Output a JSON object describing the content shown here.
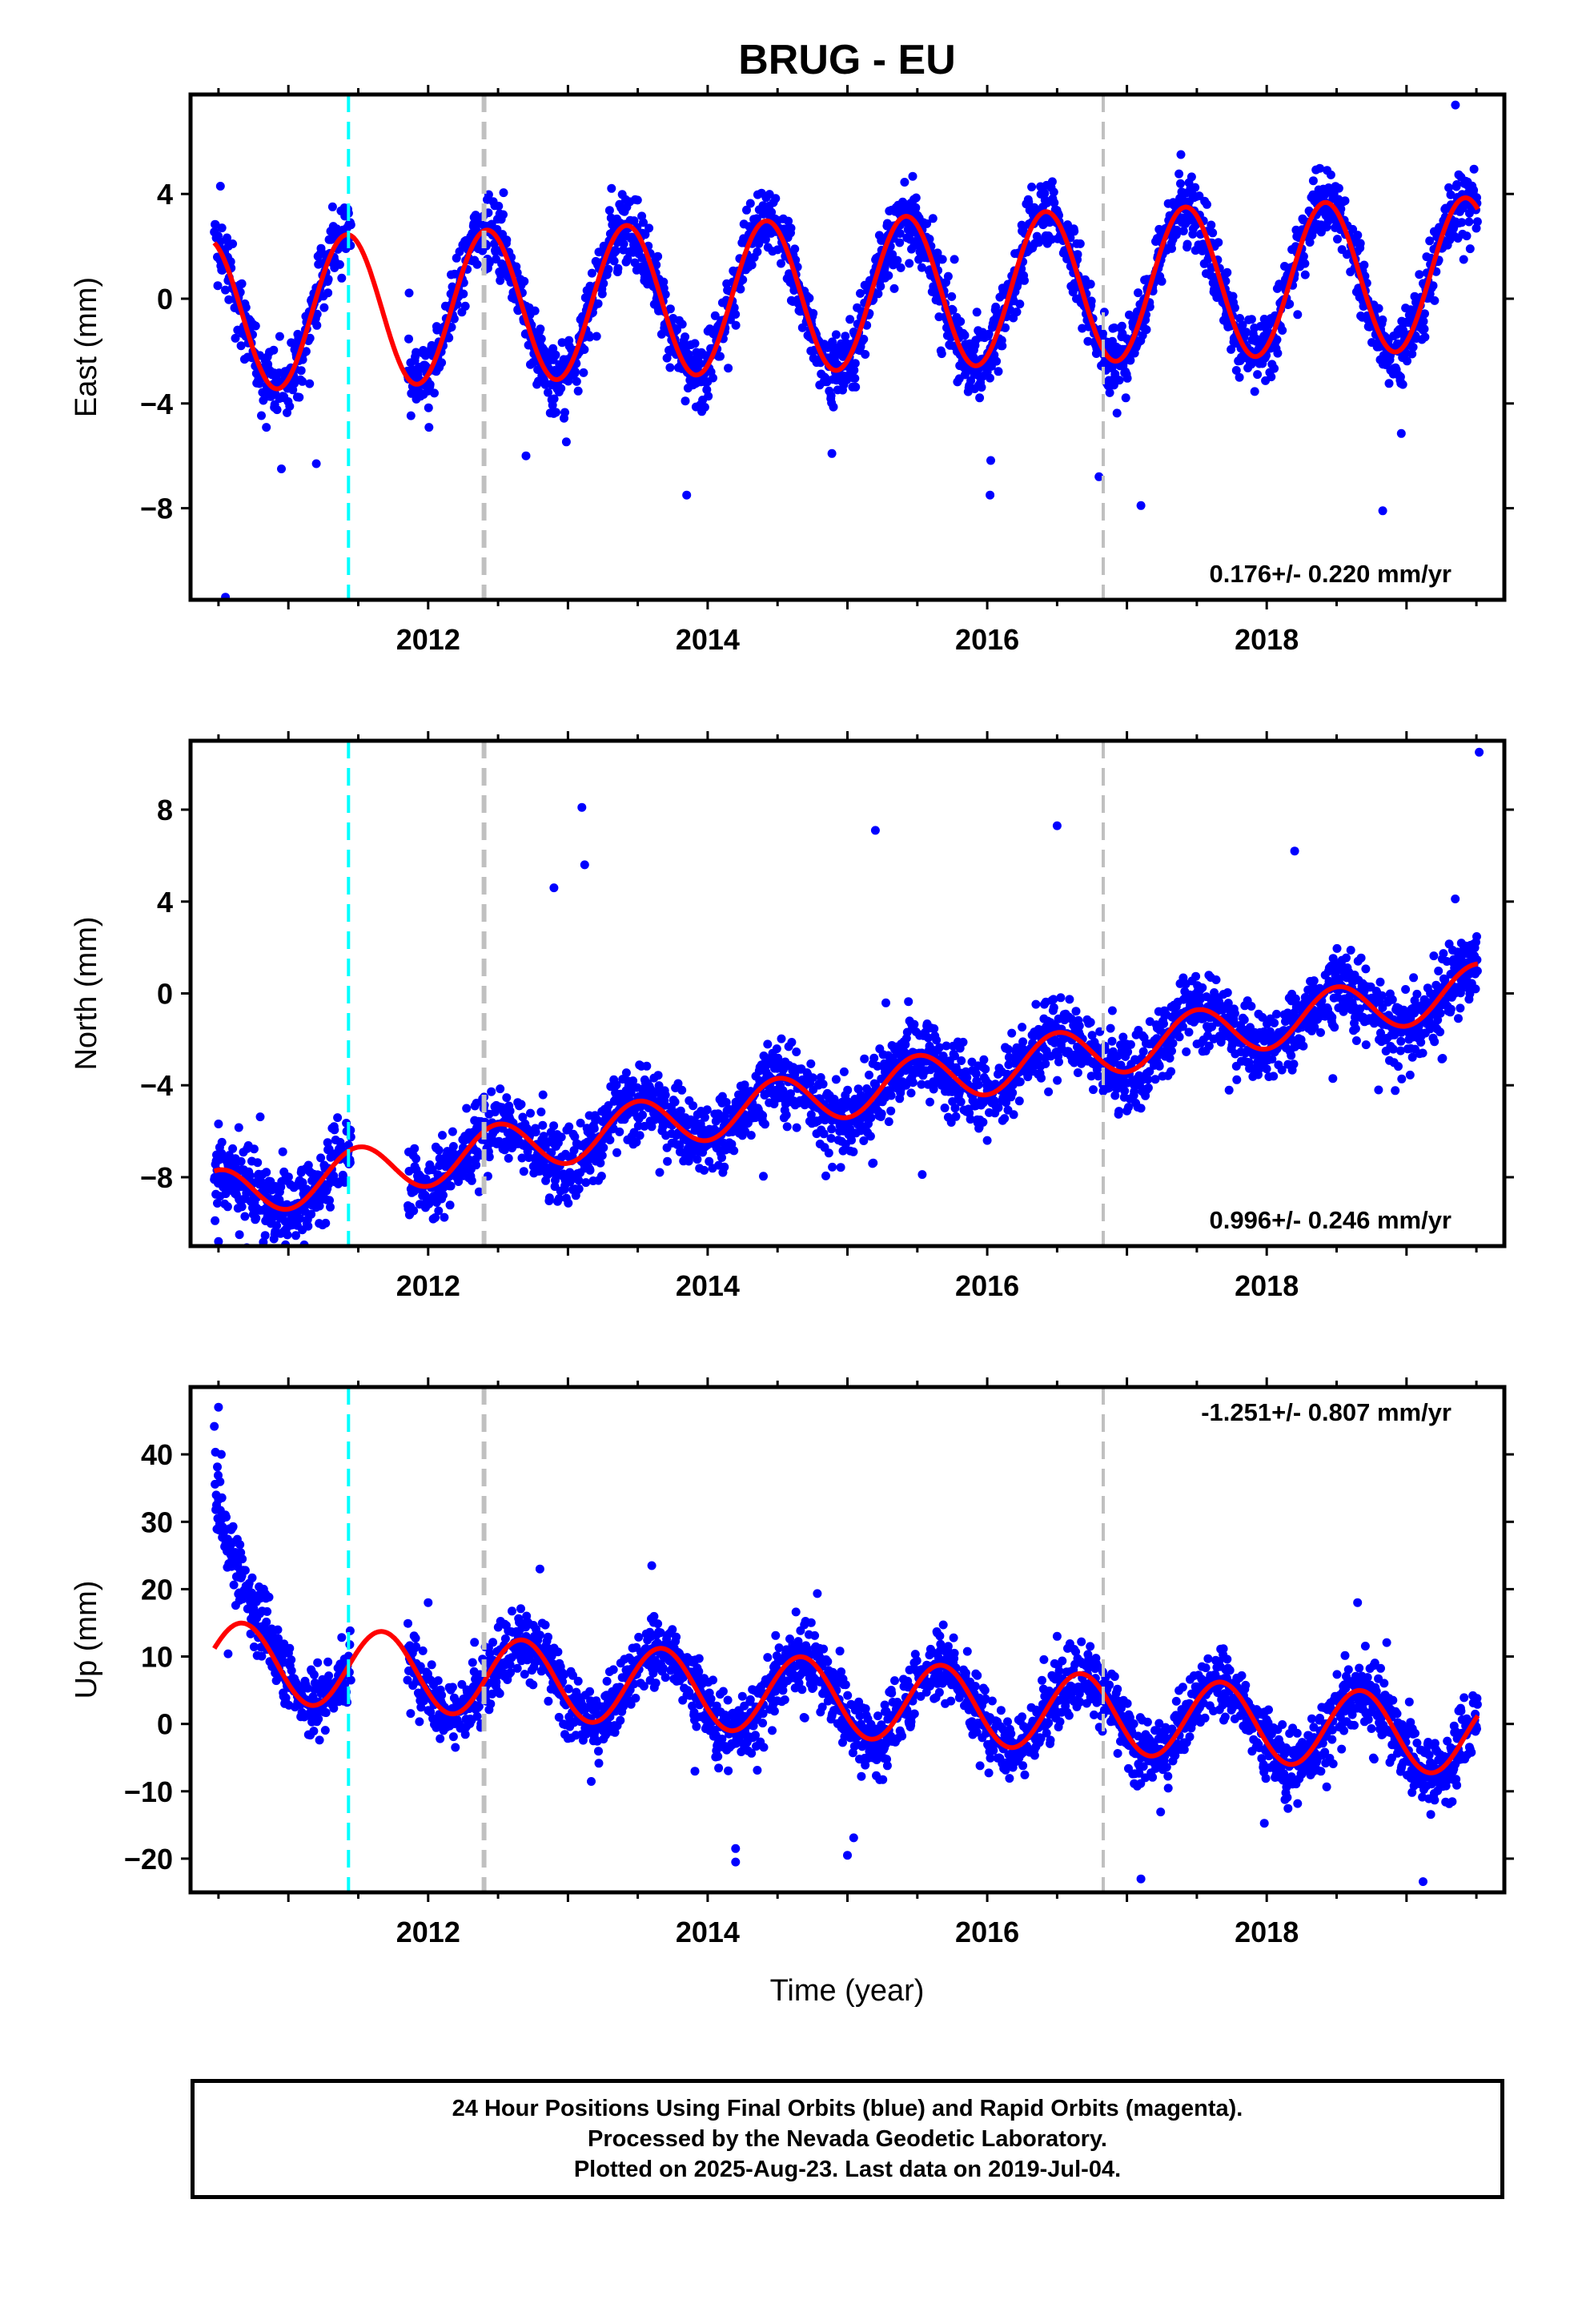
{
  "title": "BRUG - EU",
  "xlabel": "Time (year)",
  "footer": [
    "24 Hour Positions Using Final Orbits (blue) and Rapid Orbits (magenta).",
    "Processed by the Nevada Geodetic Laboratory.",
    "Plotted on 2025-Aug-23. Last data on 2019-Jul-04."
  ],
  "colors": {
    "points": "#0000ff",
    "model": "#ff0000",
    "equipment_change": "#00ffff",
    "event_line": "#c0c0c0"
  },
  "chart_data": [
    {
      "type": "scatter",
      "component": "east",
      "ylabel": "East (mm)",
      "rate_label": "0.176+/- 0.220 mm/yr",
      "rate_position": "bottom-right",
      "xlim": [
        2010.3,
        2019.7
      ],
      "ylim": [
        -11.5,
        7.8
      ],
      "xticks": [
        2012,
        2014,
        2016,
        2018
      ],
      "yticks": [
        4,
        0,
        -4,
        -8
      ],
      "data_start": 2010.47,
      "data_end": 2019.51,
      "gap": [
        2011.45,
        2011.85
      ],
      "vlines": [
        {
          "x": 2011.43,
          "kind": "equipment_change"
        },
        {
          "x": 2012.4,
          "kind": "event"
        },
        {
          "x": 2016.83,
          "kind": "event"
        }
      ],
      "model": {
        "intercept": 0.0,
        "rate": 0.176,
        "amplitude": 2.9,
        "peak_phase": 0.42
      },
      "noise": 0.9,
      "outliers": [
        [
          2010.55,
          -11.4
        ],
        [
          2010.95,
          -6.5
        ],
        [
          2011.2,
          -6.3
        ],
        [
          2012.7,
          -6.0
        ],
        [
          2013.85,
          -7.5
        ],
        [
          2016.02,
          -7.5
        ],
        [
          2016.8,
          -6.8
        ],
        [
          2018.83,
          -8.1
        ],
        [
          2017.1,
          -7.9
        ],
        [
          2019.35,
          7.4
        ]
      ]
    },
    {
      "type": "scatter",
      "component": "north",
      "ylabel": "North (mm)",
      "rate_label": "0.996+/- 0.246 mm/yr",
      "rate_position": "bottom-right",
      "xlim": [
        2010.3,
        2019.7
      ],
      "ylim": [
        -11.0,
        11.0
      ],
      "xticks": [
        2012,
        2014,
        2016,
        2018
      ],
      "yticks": [
        8,
        4,
        0,
        -4,
        -8
      ],
      "data_start": 2010.47,
      "data_end": 2019.51,
      "gap": [
        2011.45,
        2011.85
      ],
      "vlines": [
        {
          "x": 2011.43,
          "kind": "equipment_change"
        },
        {
          "x": 2012.4,
          "kind": "event"
        },
        {
          "x": 2016.83,
          "kind": "event"
        }
      ],
      "model": {
        "intercept": -5.3,
        "rate": 0.996,
        "amplitude": 1.1,
        "peak_phase": 0.5
      },
      "noise": 1.1,
      "outliers": [
        [
          2013.1,
          8.1
        ],
        [
          2013.12,
          5.6
        ],
        [
          2012.9,
          4.6
        ],
        [
          2010.5,
          -10.8
        ],
        [
          2010.65,
          -10.5
        ],
        [
          2010.95,
          -9.5
        ],
        [
          2016.0,
          -6.4
        ],
        [
          2018.2,
          6.2
        ],
        [
          2018.8,
          -4.2
        ],
        [
          2019.2,
          -2.1
        ],
        [
          2019.52,
          10.5
        ],
        [
          2017.1,
          -5.0
        ],
        [
          2015.2,
          7.1
        ],
        [
          2016.5,
          7.3
        ]
      ]
    },
    {
      "type": "scatter",
      "component": "up",
      "ylabel": "Up (mm)",
      "rate_label": "-1.251+/- 0.807 mm/yr",
      "rate_position": "top-right",
      "xlim": [
        2010.3,
        2019.7
      ],
      "ylim": [
        -25.0,
        50.0
      ],
      "xticks": [
        2012,
        2014,
        2016,
        2018
      ],
      "yticks": [
        40,
        30,
        20,
        10,
        0,
        -10,
        -20
      ],
      "data_start": 2010.47,
      "data_end": 2019.51,
      "gap": [
        2011.45,
        2011.85
      ],
      "vlines": [
        {
          "x": 2011.43,
          "kind": "equipment_change"
        },
        {
          "x": 2012.4,
          "kind": "event"
        },
        {
          "x": 2016.83,
          "kind": "event"
        }
      ],
      "model": {
        "intercept": 5.0,
        "rate": -1.251,
        "amplitude": 5.8,
        "peak_phase": 0.67
      },
      "noise": 3.5,
      "transient": {
        "amplitude": 25.0,
        "tau": 0.15
      },
      "outliers": [
        [
          2010.5,
          47.0
        ],
        [
          2010.52,
          40.0
        ],
        [
          2013.6,
          23.5
        ],
        [
          2012.8,
          23.0
        ],
        [
          2014.2,
          -20.5
        ],
        [
          2014.2,
          -18.5
        ],
        [
          2015.0,
          -19.5
        ],
        [
          2017.1,
          -23.0
        ],
        [
          2016.5,
          13.0
        ],
        [
          2018.65,
          18.0
        ],
        [
          2012.0,
          18.0
        ]
      ]
    }
  ]
}
